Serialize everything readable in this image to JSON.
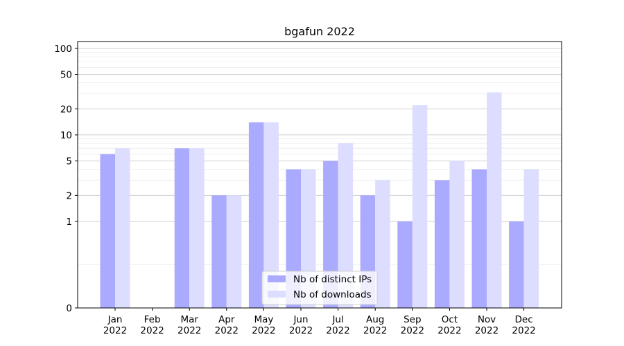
{
  "chart_data": {
    "type": "bar",
    "title": "bgafun 2022",
    "xlabel": "",
    "ylabel": "",
    "yscale": "symlog",
    "ylim": [
      0,
      120
    ],
    "yticks": [
      0,
      1,
      2,
      5,
      10,
      20,
      50,
      100
    ],
    "ytick_labels": [
      "0",
      "1",
      "2",
      "5",
      "10",
      "20",
      "50",
      "100"
    ],
    "categories": [
      "Jan\n2022",
      "Feb\n2022",
      "Mar\n2022",
      "Apr\n2022",
      "May\n2022",
      "Jun\n2022",
      "Jul\n2022",
      "Aug\n2022",
      "Sep\n2022",
      "Oct\n2022",
      "Nov\n2022",
      "Dec\n2022"
    ],
    "category_lines": [
      [
        "Jan",
        "2022"
      ],
      [
        "Feb",
        "2022"
      ],
      [
        "Mar",
        "2022"
      ],
      [
        "Apr",
        "2022"
      ],
      [
        "May",
        "2022"
      ],
      [
        "Jun",
        "2022"
      ],
      [
        "Jul",
        "2022"
      ],
      [
        "Aug",
        "2022"
      ],
      [
        "Sep",
        "2022"
      ],
      [
        "Oct",
        "2022"
      ],
      [
        "Nov",
        "2022"
      ],
      [
        "Dec",
        "2022"
      ]
    ],
    "series": [
      {
        "name": "Nb of distinct IPs",
        "color": "#aaaaff",
        "values": [
          6,
          0,
          7,
          2,
          14,
          4,
          5,
          2,
          1,
          3,
          4,
          1
        ]
      },
      {
        "name": "Nb of downloads",
        "color": "#ddddff",
        "values": [
          7,
          0,
          7,
          2,
          14,
          4,
          8,
          3,
          22,
          5,
          31,
          4
        ]
      }
    ],
    "grid": true,
    "legend_position": "lower center"
  }
}
